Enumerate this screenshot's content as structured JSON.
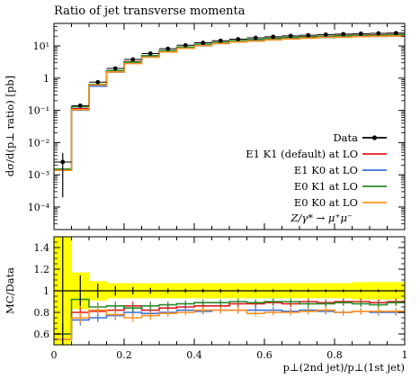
{
  "chart_data": {
    "type": "line",
    "title": "Ratio of jet transverse momenta",
    "process_label": "Z/γ* → μ⁺μ⁻",
    "xlabel": "p⊥(2nd jet)/p⊥(1st jet)",
    "ylabel_main": "dσ/d(p⊥ ratio) [pb]",
    "ylabel_ratio": "MC/Data",
    "xlim": [
      0,
      1
    ],
    "ylim_main": [
      2e-05,
      50
    ],
    "ylim_ratio": [
      0.5,
      1.5
    ],
    "yscale_main": "log",
    "x_ticks": [
      "0",
      "0.2",
      "0.4",
      "0.6",
      "0.8",
      "1"
    ],
    "y_ticks_main": [
      "10⁻⁴",
      "10⁻³",
      "10⁻²",
      "10⁻¹",
      "1",
      "10¹"
    ],
    "y_ticks_ratio": [
      "0.6",
      "0.8",
      "1",
      "1.2",
      "1.4"
    ],
    "bin_edges": [
      0,
      0.05,
      0.1,
      0.15,
      0.2,
      0.25,
      0.3,
      0.35,
      0.4,
      0.45,
      0.5,
      0.55,
      0.6,
      0.65,
      0.7,
      0.75,
      0.8,
      0.85,
      0.9,
      0.95,
      1.0
    ],
    "data": {
      "name": "Data",
      "color": "#000000",
      "values": [
        0.0025,
        0.14,
        0.75,
        2.0,
        3.8,
        5.8,
        8.2,
        10.5,
        12.5,
        14.5,
        16.2,
        17.8,
        19.2,
        20.5,
        21.5,
        22.5,
        23.3,
        24.0,
        24.6,
        25.0
      ],
      "errors": [
        0.0023,
        0.02,
        0.05,
        0.09,
        0.13,
        0.16,
        0.18,
        0.2,
        0.22,
        0.24,
        0.25,
        0.26,
        0.27,
        0.28,
        0.29,
        0.3,
        0.3,
        0.31,
        0.31,
        0.32
      ]
    },
    "band_rel_error": [
      0.5,
      0.17,
      0.09,
      0.07,
      0.07,
      0.07,
      0.07,
      0.07,
      0.07,
      0.07,
      0.07,
      0.07,
      0.07,
      0.07,
      0.07,
      0.07,
      0.07,
      0.08,
      0.08,
      0.08
    ],
    "band_color": "#ffff00",
    "series": [
      {
        "name": "E1 K1 (default) at LO",
        "color": "#e41a1c",
        "ratio": [
          0.6,
          0.8,
          0.81,
          0.82,
          0.86,
          0.82,
          0.84,
          0.85,
          0.86,
          0.86,
          0.88,
          0.88,
          0.89,
          0.88,
          0.9,
          0.89,
          0.9,
          0.9,
          0.89,
          0.9
        ],
        "ratio_err": [
          0.1,
          0.05,
          0.04,
          0.04,
          0.04,
          0.04,
          0.03,
          0.03,
          0.03,
          0.03,
          0.03,
          0.03,
          0.03,
          0.03,
          0.03,
          0.03,
          0.03,
          0.03,
          0.03,
          0.03
        ]
      },
      {
        "name": "E1 K0 at LO",
        "color": "#3a6fd8",
        "ratio": [
          0.55,
          0.73,
          0.75,
          0.77,
          0.8,
          0.79,
          0.8,
          0.82,
          0.81,
          0.82,
          0.82,
          0.82,
          0.82,
          0.81,
          0.82,
          0.81,
          0.8,
          0.81,
          0.8,
          0.8
        ],
        "ratio_err": [
          0.1,
          0.05,
          0.04,
          0.04,
          0.04,
          0.04,
          0.03,
          0.03,
          0.03,
          0.03,
          0.03,
          0.03,
          0.03,
          0.03,
          0.03,
          0.03,
          0.03,
          0.03,
          0.03,
          0.03
        ]
      },
      {
        "name": "E0 K1 at LO",
        "color": "#2a8a2a",
        "ratio": [
          0.6,
          0.92,
          0.85,
          0.86,
          0.84,
          0.86,
          0.87,
          0.88,
          0.89,
          0.89,
          0.9,
          0.89,
          0.9,
          0.9,
          0.88,
          0.88,
          0.89,
          0.88,
          0.87,
          0.89
        ],
        "ratio_err": [
          0.1,
          0.05,
          0.04,
          0.04,
          0.04,
          0.04,
          0.03,
          0.03,
          0.03,
          0.03,
          0.03,
          0.03,
          0.03,
          0.03,
          0.03,
          0.03,
          0.03,
          0.03,
          0.03,
          0.03
        ]
      },
      {
        "name": "E0 K0 at LO",
        "color": "#ff9320",
        "ratio": [
          0.55,
          0.75,
          0.82,
          0.78,
          0.75,
          0.77,
          0.79,
          0.8,
          0.82,
          0.82,
          0.82,
          0.79,
          0.8,
          0.8,
          0.81,
          0.82,
          0.8,
          0.81,
          0.81,
          0.81
        ],
        "ratio_err": [
          0.1,
          0.05,
          0.04,
          0.04,
          0.04,
          0.04,
          0.03,
          0.03,
          0.03,
          0.03,
          0.03,
          0.03,
          0.03,
          0.03,
          0.03,
          0.03,
          0.03,
          0.03,
          0.03,
          0.03
        ]
      }
    ],
    "legend_position": "center-right"
  }
}
